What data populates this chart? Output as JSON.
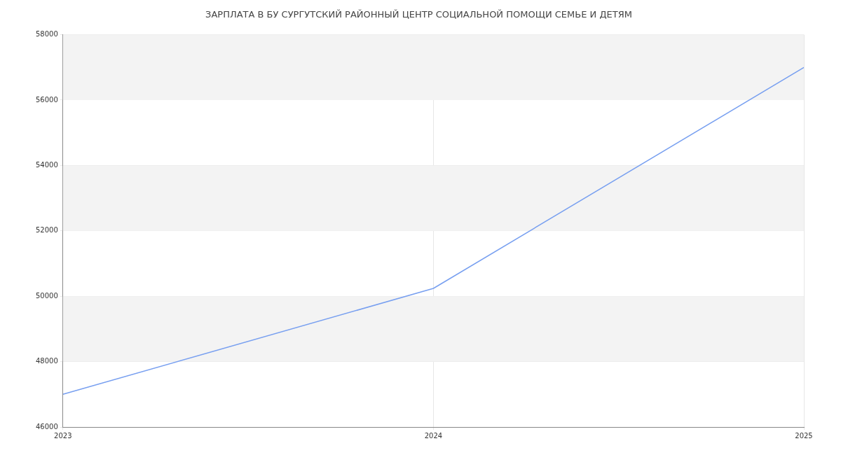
{
  "chart_data": {
    "type": "line",
    "title": "ЗАРПЛАТА В БУ СУРГУТСКИЙ РАЙОННЫЙ ЦЕНТР СОЦИАЛЬНОЙ ПОМОЩИ СЕМЬЕ И ДЕТЯМ",
    "x": [
      2023,
      2024,
      2025
    ],
    "series": [
      {
        "color": "#779ff0",
        "values": [
          47000,
          50240,
          57000
        ]
      }
    ],
    "xlim": [
      2023,
      2025
    ],
    "xticks": [
      2023,
      2024,
      2025
    ],
    "ylim": [
      46000,
      58000
    ],
    "yticks": [
      46000,
      48000,
      50000,
      52000,
      54000,
      56000,
      58000
    ],
    "grid": true,
    "marker": "none",
    "line_style": "solid"
  }
}
